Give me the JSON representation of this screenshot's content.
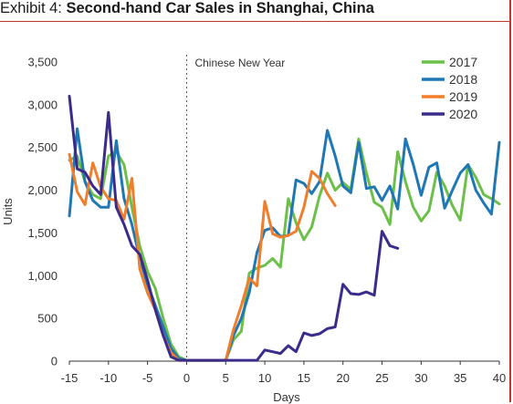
{
  "header": {
    "prefix": "Exhibit 4: ",
    "title": "Second-hand Car Sales in Shanghai, China"
  },
  "colors": {
    "2017": "#6cc04a",
    "2018": "#1f77b4",
    "2019": "#f07e2c",
    "2020": "#3b2c8c",
    "accent": "#c0392b"
  },
  "chart_data": {
    "type": "line",
    "xlabel": "Days",
    "ylabel": "Units",
    "xlim": [
      -15,
      40
    ],
    "ylim": [
      0,
      3500
    ],
    "xticks": [
      -15,
      -10,
      -5,
      0,
      5,
      10,
      15,
      20,
      25,
      30,
      35,
      40
    ],
    "yticks": [
      0,
      500,
      1000,
      1500,
      2000,
      2500,
      3000,
      3500
    ],
    "ytick_labels": [
      "0",
      "500",
      "1,000",
      "1,500",
      "2,000",
      "2,500",
      "3,000",
      "3,500"
    ],
    "legend_position": "top-right",
    "grid": false,
    "annotations": [
      {
        "text": "Chinese New Year",
        "x": 0
      }
    ],
    "series": [
      {
        "name": "2017",
        "x": [
          -15,
          -14,
          -13,
          -12,
          -11,
          -10,
          -9,
          -8,
          -7,
          -6,
          -5,
          -4,
          -3,
          -2,
          -1,
          0,
          1,
          2,
          3,
          4,
          5,
          6,
          7,
          8,
          9,
          10,
          11,
          12,
          13,
          14,
          15,
          16,
          17,
          18,
          19,
          20,
          21,
          22,
          23,
          24,
          25,
          26,
          27,
          28,
          29,
          30,
          31,
          32,
          33,
          34,
          35,
          36,
          37,
          38,
          39,
          40
        ],
        "y": [
          2350,
          2400,
          2100,
          1950,
          1900,
          2400,
          2450,
          2300,
          1800,
          1350,
          1050,
          850,
          500,
          200,
          50,
          10,
          10,
          10,
          10,
          10,
          10,
          250,
          350,
          1030,
          1090,
          1120,
          1200,
          1100,
          1900,
          1620,
          1420,
          1570,
          1930,
          2200,
          2000,
          2090,
          2010,
          2600,
          2200,
          1860,
          1800,
          1600,
          2450,
          2100,
          1800,
          1640,
          1760,
          2210,
          2050,
          1820,
          1650,
          2300,
          2150,
          1950,
          1900,
          1840
        ]
      },
      {
        "name": "2018",
        "x": [
          -15,
          -14,
          -13,
          -12,
          -11,
          -10,
          -9,
          -8,
          -7,
          -6,
          -5,
          -4,
          -3,
          -2,
          -1,
          0,
          1,
          2,
          3,
          4,
          5,
          6,
          7,
          8,
          9,
          10,
          11,
          12,
          13,
          14,
          15,
          16,
          17,
          18,
          19,
          20,
          21,
          22,
          23,
          24,
          25,
          26,
          27,
          28,
          29,
          30,
          31,
          32,
          33,
          34,
          35,
          36,
          37,
          38,
          39,
          40
        ],
        "y": [
          1700,
          2720,
          2100,
          1880,
          1800,
          1800,
          2580,
          1900,
          1600,
          1200,
          900,
          650,
          400,
          150,
          30,
          10,
          10,
          10,
          10,
          10,
          10,
          300,
          500,
          800,
          1270,
          1530,
          1560,
          1460,
          1470,
          2120,
          2080,
          1960,
          2100,
          2700,
          2400,
          2050,
          1970,
          2560,
          2020,
          2040,
          1880,
          2050,
          1780,
          2600,
          2300,
          1940,
          2270,
          2320,
          1790,
          2000,
          2200,
          2300,
          2000,
          1850,
          1720,
          2560
        ]
      },
      {
        "name": "2019",
        "x": [
          -15,
          -14,
          -13,
          -12,
          -11,
          -10,
          -9,
          -8,
          -7,
          -6,
          -5,
          -4,
          -3,
          -2,
          -1,
          0,
          1,
          2,
          3,
          4,
          5,
          6,
          7,
          8,
          9,
          10,
          11,
          12,
          13,
          14,
          15,
          16,
          17,
          18,
          19
        ],
        "y": [
          2420,
          1980,
          1830,
          2320,
          2040,
          1900,
          1880,
          1660,
          2140,
          1080,
          800,
          600,
          300,
          100,
          10,
          10,
          10,
          10,
          10,
          10,
          10,
          370,
          650,
          970,
          880,
          1870,
          1490,
          1450,
          1470,
          1520,
          1800,
          2220,
          2140,
          1960,
          1820
        ]
      },
      {
        "name": "2020",
        "x": [
          -15,
          -14,
          -13,
          -12,
          -11,
          -10,
          -9,
          -8,
          -7,
          -6,
          -5,
          -4,
          -3,
          -2,
          -1,
          0,
          1,
          2,
          3,
          4,
          5,
          6,
          7,
          8,
          9,
          10,
          11,
          12,
          13,
          14,
          15,
          16,
          17,
          18,
          19,
          20,
          21,
          22,
          23,
          24,
          25,
          26,
          27
        ],
        "y": [
          3100,
          2250,
          2210,
          2050,
          1950,
          2910,
          1800,
          1600,
          1350,
          1250,
          950,
          600,
          300,
          50,
          10,
          10,
          10,
          10,
          10,
          10,
          10,
          10,
          10,
          10,
          10,
          130,
          110,
          90,
          180,
          110,
          330,
          300,
          320,
          380,
          400,
          900,
          790,
          780,
          810,
          770,
          1520,
          1350,
          1320
        ]
      }
    ]
  }
}
